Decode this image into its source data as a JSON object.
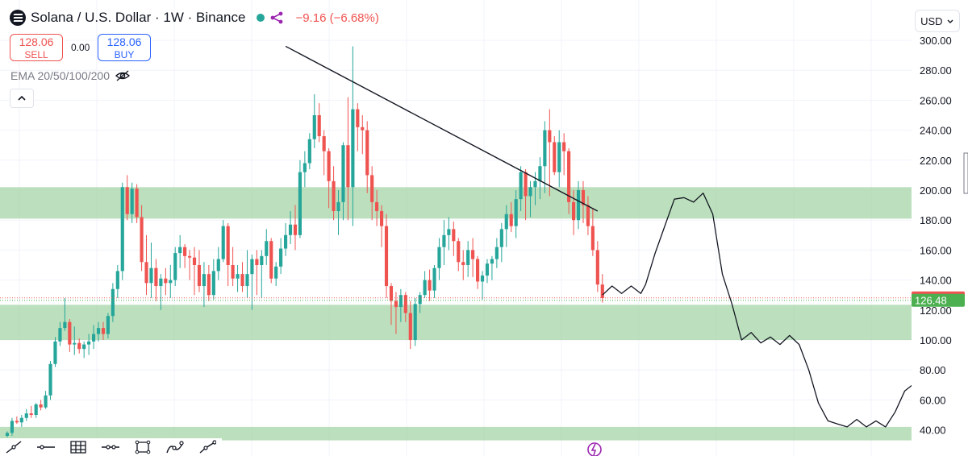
{
  "header": {
    "symbol_title": "Solana / U.S. Dollar · 1W · Binance",
    "change_text": "−9.16 (−6.68%)",
    "sell_price": "128.06",
    "sell_label": "SELL",
    "buy_price": "128.06",
    "buy_label": "BUY",
    "spread": "0.00",
    "indicator_label": "EMA 20/50/100/200",
    "currency": "USD"
  },
  "colors": {
    "up": "#26a69a",
    "down": "#ef5350",
    "zone": "#a5d6a7",
    "last_price_badge": "#ef5350",
    "prev_close_badge": "#4caf50"
  },
  "chart_data": {
    "type": "candlestick",
    "title": "Solana / U.S. Dollar · 1W · Binance",
    "y_axis": {
      "min": 32,
      "max": 305,
      "ticks": [
        "300.00",
        "280.00",
        "260.00",
        "240.00",
        "220.00",
        "200.00",
        "180.00",
        "160.00",
        "140.00",
        "120.00",
        "100.00",
        "80.00",
        "60.00",
        "40.00"
      ]
    },
    "price_labels": [
      {
        "text": "128.06",
        "value": 128.06,
        "color": "#ef5350"
      },
      {
        "text": "126.48",
        "value": 126.48,
        "color": "#4caf50"
      }
    ],
    "zones": [
      {
        "low": 181,
        "high": 202
      },
      {
        "low": 100,
        "high": 123.5
      },
      {
        "low": 33,
        "high": 42
      }
    ],
    "trendline": {
      "from": [
        58,
        296
      ],
      "to": [
        123,
        186
      ]
    },
    "candles": [
      [
        36,
        39,
        35,
        38
      ],
      [
        38,
        48,
        36,
        46
      ],
      [
        46,
        49,
        44,
        45
      ],
      [
        45,
        50,
        42,
        48
      ],
      [
        48,
        54,
        46,
        51
      ],
      [
        51,
        56,
        48,
        50
      ],
      [
        50,
        58,
        48,
        57
      ],
      [
        57,
        60,
        53,
        55
      ],
      [
        55,
        66,
        54,
        63
      ],
      [
        63,
        86,
        60,
        84
      ],
      [
        84,
        102,
        82,
        99
      ],
      [
        99,
        112,
        96,
        108
      ],
      [
        108,
        128,
        106,
        112
      ],
      [
        112,
        114,
        92,
        97
      ],
      [
        97,
        109,
        90,
        98
      ],
      [
        98,
        101,
        91,
        94
      ],
      [
        94,
        99,
        88,
        97
      ],
      [
        97,
        104,
        90,
        99
      ],
      [
        99,
        110,
        94,
        104
      ],
      [
        104,
        112,
        99,
        108
      ],
      [
        108,
        112,
        100,
        104
      ],
      [
        104,
        118,
        101,
        116
      ],
      [
        116,
        138,
        112,
        134
      ],
      [
        134,
        150,
        128,
        146
      ],
      [
        146,
        205,
        140,
        202
      ],
      [
        202,
        210,
        180,
        184
      ],
      [
        184,
        205,
        178,
        201
      ],
      [
        201,
        204,
        178,
        182
      ],
      [
        182,
        190,
        146,
        152
      ],
      [
        152,
        170,
        130,
        138
      ],
      [
        138,
        165,
        128,
        148
      ],
      [
        148,
        154,
        126,
        136
      ],
      [
        136,
        144,
        120,
        141
      ],
      [
        141,
        148,
        130,
        138
      ],
      [
        138,
        150,
        128,
        140
      ],
      [
        140,
        162,
        136,
        158
      ],
      [
        158,
        170,
        148,
        162
      ],
      [
        162,
        164,
        148,
        156
      ],
      [
        156,
        160,
        140,
        155
      ],
      [
        155,
        162,
        130,
        150
      ],
      [
        150,
        160,
        132,
        136
      ],
      [
        136,
        152,
        122,
        144
      ],
      [
        144,
        150,
        126,
        130
      ],
      [
        130,
        154,
        127,
        146
      ],
      [
        146,
        162,
        140,
        154
      ],
      [
        154,
        180,
        152,
        176
      ],
      [
        176,
        178,
        136,
        150
      ],
      [
        150,
        162,
        136,
        141
      ],
      [
        141,
        150,
        132,
        144
      ],
      [
        144,
        152,
        132,
        136
      ],
      [
        136,
        160,
        128,
        144
      ],
      [
        144,
        157,
        120,
        154
      ],
      [
        154,
        160,
        130,
        150
      ],
      [
        150,
        160,
        128,
        156
      ],
      [
        156,
        174,
        150,
        166
      ],
      [
        166,
        168,
        138,
        141
      ],
      [
        141,
        152,
        136,
        149
      ],
      [
        149,
        168,
        144,
        161
      ],
      [
        161,
        178,
        156,
        170
      ],
      [
        170,
        186,
        164,
        177
      ],
      [
        177,
        190,
        160,
        170
      ],
      [
        170,
        220,
        168,
        212
      ],
      [
        212,
        226,
        202,
        218
      ],
      [
        218,
        238,
        214,
        234
      ],
      [
        234,
        264,
        228,
        250
      ],
      [
        250,
        258,
        232,
        236
      ],
      [
        236,
        240,
        210,
        226
      ],
      [
        226,
        228,
        188,
        206
      ],
      [
        206,
        216,
        180,
        186
      ],
      [
        186,
        200,
        170,
        192
      ],
      [
        192,
        232,
        180,
        230
      ],
      [
        230,
        262,
        180,
        202
      ],
      [
        202,
        296,
        176,
        254
      ],
      [
        254,
        258,
        226,
        242
      ],
      [
        242,
        250,
        224,
        240
      ],
      [
        240,
        246,
        198,
        210
      ],
      [
        210,
        216,
        180,
        192
      ],
      [
        192,
        200,
        176,
        186
      ],
      [
        186,
        190,
        162,
        176
      ],
      [
        176,
        184,
        128,
        136
      ],
      [
        136,
        138,
        110,
        126
      ],
      [
        126,
        132,
        104,
        122
      ],
      [
        122,
        134,
        112,
        130
      ],
      [
        130,
        132,
        112,
        118
      ],
      [
        118,
        126,
        94,
        100
      ],
      [
        100,
        128,
        96,
        124
      ],
      [
        124,
        132,
        118,
        130
      ],
      [
        130,
        146,
        128,
        140
      ],
      [
        140,
        147,
        126,
        133
      ],
      [
        133,
        150,
        128,
        148
      ],
      [
        148,
        168,
        140,
        162
      ],
      [
        162,
        180,
        150,
        170
      ],
      [
        170,
        182,
        160,
        174
      ],
      [
        174,
        179,
        156,
        166
      ],
      [
        166,
        168,
        146,
        152
      ],
      [
        152,
        160,
        140,
        150
      ],
      [
        150,
        166,
        142,
        160
      ],
      [
        160,
        168,
        142,
        154
      ],
      [
        154,
        156,
        134,
        139
      ],
      [
        139,
        146,
        127,
        143
      ],
      [
        143,
        154,
        138,
        151
      ],
      [
        151,
        156,
        140,
        154
      ],
      [
        154,
        168,
        148,
        162
      ],
      [
        162,
        178,
        152,
        174
      ],
      [
        174,
        190,
        162,
        184
      ],
      [
        184,
        192,
        172,
        176
      ],
      [
        176,
        200,
        168,
        194
      ],
      [
        194,
        216,
        186,
        212
      ],
      [
        212,
        214,
        180,
        196
      ],
      [
        196,
        206,
        182,
        202
      ],
      [
        202,
        212,
        190,
        206
      ],
      [
        206,
        222,
        194,
        216
      ],
      [
        216,
        246,
        198,
        240
      ],
      [
        240,
        254,
        196,
        232
      ],
      [
        232,
        236,
        210,
        212
      ],
      [
        212,
        240,
        202,
        232
      ],
      [
        232,
        238,
        210,
        226
      ],
      [
        226,
        228,
        184,
        192
      ],
      [
        192,
        200,
        170,
        180
      ],
      [
        180,
        206,
        174,
        200
      ],
      [
        200,
        206,
        178,
        190
      ],
      [
        190,
        196,
        170,
        176
      ],
      [
        176,
        188,
        156,
        160
      ],
      [
        160,
        166,
        132,
        137
      ],
      [
        137,
        144,
        125,
        128
      ]
    ],
    "drawn_projection": [
      [
        124,
        130
      ],
      [
        126,
        136
      ],
      [
        128,
        131
      ],
      [
        130,
        136
      ],
      [
        132,
        131
      ],
      [
        133,
        137
      ],
      [
        135,
        158
      ],
      [
        137,
        176
      ],
      [
        139,
        194
      ],
      [
        141,
        195
      ],
      [
        143,
        192
      ],
      [
        145,
        198
      ],
      [
        147,
        184
      ],
      [
        149,
        144
      ],
      [
        151,
        124
      ],
      [
        153,
        100
      ],
      [
        155,
        105
      ],
      [
        157,
        98
      ],
      [
        159,
        102
      ],
      [
        161,
        97
      ],
      [
        163,
        103
      ],
      [
        165,
        97
      ],
      [
        167,
        80
      ],
      [
        169,
        58
      ],
      [
        171,
        46
      ],
      [
        173,
        44
      ],
      [
        175,
        42
      ],
      [
        177,
        47
      ],
      [
        179,
        42
      ],
      [
        181,
        46
      ],
      [
        183,
        42
      ],
      [
        185,
        52
      ],
      [
        187,
        66
      ],
      [
        189,
        71
      ]
    ]
  }
}
